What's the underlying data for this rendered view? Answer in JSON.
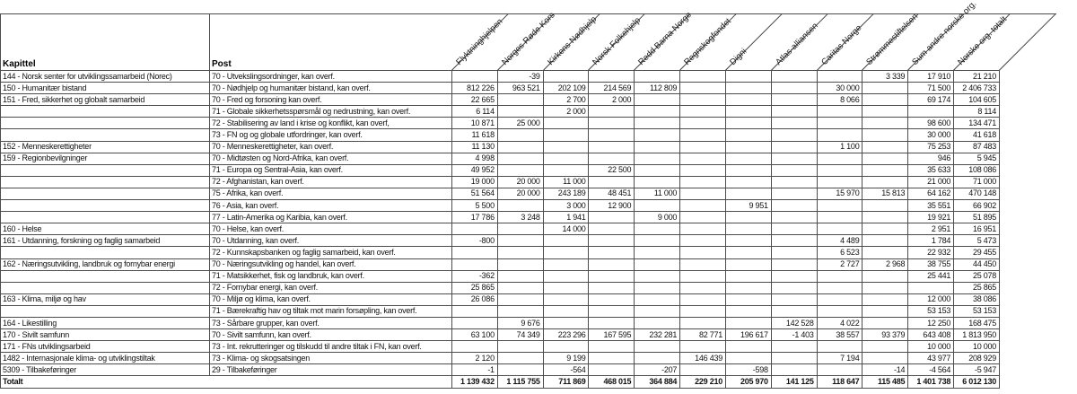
{
  "table": {
    "kapittel_header": "Kapittel",
    "post_header": "Post",
    "org_columns": [
      "Flyktninghjelpen",
      "Norges Røde Kors",
      "Kirkens Nødhjelp",
      "Norsk Folkehjelp",
      "Redd Barna Norge",
      "Regnskogfondet",
      "Digni",
      "Atlas-alliansen",
      "Caritas Norge",
      "Strømmestiftelsen",
      "Sum andre norske org.",
      "Norske org. totalt"
    ],
    "rows": [
      {
        "kapittel": "144 - Norsk senter for utviklingssamarbeid (Norec)",
        "post": "70 - Utvekslingsordninger, kan overf.",
        "values": [
          "",
          "-39",
          "",
          "",
          "",
          "",
          "",
          "",
          "",
          "3 339",
          "17 910",
          "21 210"
        ]
      },
      {
        "kapittel": "150 - Humanitær bistand",
        "post": "70 - Nødhjelp og humanitær bistand, kan overf.",
        "values": [
          "812 226",
          "963 521",
          "202 109",
          "214 569",
          "112 809",
          "",
          "",
          "",
          "30 000",
          "",
          "71 500",
          "2 406 733"
        ]
      },
      {
        "kapittel": "151 - Fred, sikkerhet og globalt samarbeid",
        "post": "70 - Fred og forsoning kan overf.",
        "values": [
          "22 665",
          "",
          "2 700",
          "2 000",
          "",
          "",
          "",
          "",
          "8 066",
          "",
          "69 174",
          "104 605"
        ]
      },
      {
        "kapittel": "",
        "post": "71 - Globale sikkerhetsspørsmål og nedrustning, kan overf.",
        "values": [
          "6 114",
          "",
          "2 000",
          "",
          "",
          "",
          "",
          "",
          "",
          "",
          "",
          "8 114"
        ]
      },
      {
        "kapittel": "",
        "post": "72 - Stabilisering av land i krise og konflikt, kan overf,",
        "values": [
          "10 871",
          "25 000",
          "",
          "",
          "",
          "",
          "",
          "",
          "",
          "",
          "98 600",
          "134 471"
        ]
      },
      {
        "kapittel": "",
        "post": "73 - FN og og globale utfordringer, kan overf.",
        "values": [
          "11 618",
          "",
          "",
          "",
          "",
          "",
          "",
          "",
          "",
          "",
          "30 000",
          "41 618"
        ]
      },
      {
        "kapittel": "152 - Menneskerettigheter",
        "post": "70 - Menneskerettigheter, kan overf.",
        "values": [
          "11 130",
          "",
          "",
          "",
          "",
          "",
          "",
          "",
          "1 100",
          "",
          "75 253",
          "87 483"
        ]
      },
      {
        "kapittel": "159 - Regionbevilgninger",
        "post": "70 - Midtøsten og Nord-Afrika, kan overf.",
        "values": [
          "4 998",
          "",
          "",
          "",
          "",
          "",
          "",
          "",
          "",
          "",
          "946",
          "5 945"
        ]
      },
      {
        "kapittel": "",
        "post": "71 - Europa og Sentral-Asia, kan overf.",
        "values": [
          "49 952",
          "",
          "",
          "22 500",
          "",
          "",
          "",
          "",
          "",
          "",
          "35 633",
          "108 086"
        ]
      },
      {
        "kapittel": "",
        "post": "72 - Afghanistan, kan overf.",
        "values": [
          "19 000",
          "20 000",
          "11 000",
          "",
          "",
          "",
          "",
          "",
          "",
          "",
          "21 000",
          "71 000"
        ]
      },
      {
        "kapittel": "",
        "post": "75 - Afrika, kan overf.",
        "values": [
          "51 564",
          "20 000",
          "243 189",
          "48 451",
          "11 000",
          "",
          "",
          "",
          "15 970",
          "15 813",
          "64 162",
          "470 148"
        ]
      },
      {
        "kapittel": "",
        "post": "76 - Asia, kan overf.",
        "values": [
          "5 500",
          "",
          "3 000",
          "12 900",
          "",
          "",
          "9 951",
          "",
          "",
          "",
          "35 551",
          "66 902"
        ]
      },
      {
        "kapittel": "",
        "post": "77 - Latin-Amerika og Karibia, kan overf.",
        "values": [
          "17 786",
          "3 248",
          "1 941",
          "",
          "9 000",
          "",
          "",
          "",
          "",
          "",
          "19 921",
          "51 895"
        ]
      },
      {
        "kapittel": "160 - Helse",
        "post": "70 - Helse, kan overf.",
        "values": [
          "",
          "",
          "14 000",
          "",
          "",
          "",
          "",
          "",
          "",
          "",
          "2 951",
          "16 951"
        ]
      },
      {
        "kapittel": "161 - Utdanning, forskning og faglig samarbeid",
        "post": "70 - Utdanning, kan overf.",
        "values": [
          "-800",
          "",
          "",
          "",
          "",
          "",
          "",
          "",
          "4 489",
          "",
          "1 784",
          "5 473"
        ]
      },
      {
        "kapittel": "",
        "post": "72 - Kunnskapsbanken og faglig samarbeid, kan overf.",
        "values": [
          "",
          "",
          "",
          "",
          "",
          "",
          "",
          "",
          "6 523",
          "",
          "22 932",
          "29 455"
        ]
      },
      {
        "kapittel": "162 - Næringsutvikling, landbruk og fornybar energi",
        "post": "70 - Næringsutvikling og handel, kan overf.",
        "values": [
          "",
          "",
          "",
          "",
          "",
          "",
          "",
          "",
          "2 727",
          "2 968",
          "38 755",
          "44 450"
        ]
      },
      {
        "kapittel": "",
        "post": "71 - Matsikkerhet, fisk og landbruk, kan overf.",
        "values": [
          "-362",
          "",
          "",
          "",
          "",
          "",
          "",
          "",
          "",
          "",
          "25 441",
          "25 078"
        ]
      },
      {
        "kapittel": "",
        "post": "72 - Fornybar energi, kan overf.",
        "values": [
          "25 865",
          "",
          "",
          "",
          "",
          "",
          "",
          "",
          "",
          "",
          "",
          "25 865"
        ]
      },
      {
        "kapittel": "163 - Klima, miljø og hav",
        "post": "70 - Miljø og klima, kan overf.",
        "values": [
          "26 086",
          "",
          "",
          "",
          "",
          "",
          "",
          "",
          "",
          "",
          "12 000",
          "38 086"
        ]
      },
      {
        "kapittel": "",
        "post": "71 - Bærekraftig hav og tiltak mot marin forsøpling, kan overf.",
        "values": [
          "",
          "",
          "",
          "",
          "",
          "",
          "",
          "",
          "",
          "",
          "53 153",
          "53 153"
        ]
      },
      {
        "kapittel": "164 - Likestilling",
        "post": "73 - Sårbare grupper, kan overf.",
        "values": [
          "",
          "9 676",
          "",
          "",
          "",
          "",
          "",
          "142 528",
          "4 022",
          "",
          "12 250",
          "168 475"
        ]
      },
      {
        "kapittel": "170 - Sivilt samfunn",
        "post": "70 - Sivilt samfunn, kan overf.",
        "values": [
          "63 100",
          "74 349",
          "223 296",
          "167 595",
          "232 281",
          "82 771",
          "196 617",
          "-1 403",
          "38 557",
          "93 379",
          "643 408",
          "1 813 950"
        ]
      },
      {
        "kapittel": "171 - FNs utviklingsarbeid",
        "post": "73 - Int. rekrutteringer og tilskudd til andre tiltak i FN, kan overf.",
        "values": [
          "",
          "",
          "",
          "",
          "",
          "",
          "",
          "",
          "",
          "",
          "10 000",
          "10 000"
        ]
      },
      {
        "kapittel": "1482 - Internasjonale klima- og utviklingstiltak",
        "post": "73 - Klima- og skogsatsingen",
        "values": [
          "2 120",
          "",
          "9 199",
          "",
          "",
          "146 439",
          "",
          "",
          "7 194",
          "",
          "43 977",
          "208 929"
        ]
      },
      {
        "kapittel": "5309 - Tilbakeføringer",
        "post": "29 - Tilbakeføringer",
        "values": [
          "-1",
          "",
          "-564",
          "",
          "-207",
          "",
          "-598",
          "",
          "",
          "-14",
          "-4 564",
          "-5 947"
        ]
      }
    ],
    "total": {
      "label": "Totalt",
      "values": [
        "1 139 432",
        "1 115 755",
        "711 869",
        "468 015",
        "364 884",
        "229 210",
        "205 970",
        "141 125",
        "118 647",
        "115 485",
        "1 401 738",
        "6 012 130"
      ]
    }
  }
}
